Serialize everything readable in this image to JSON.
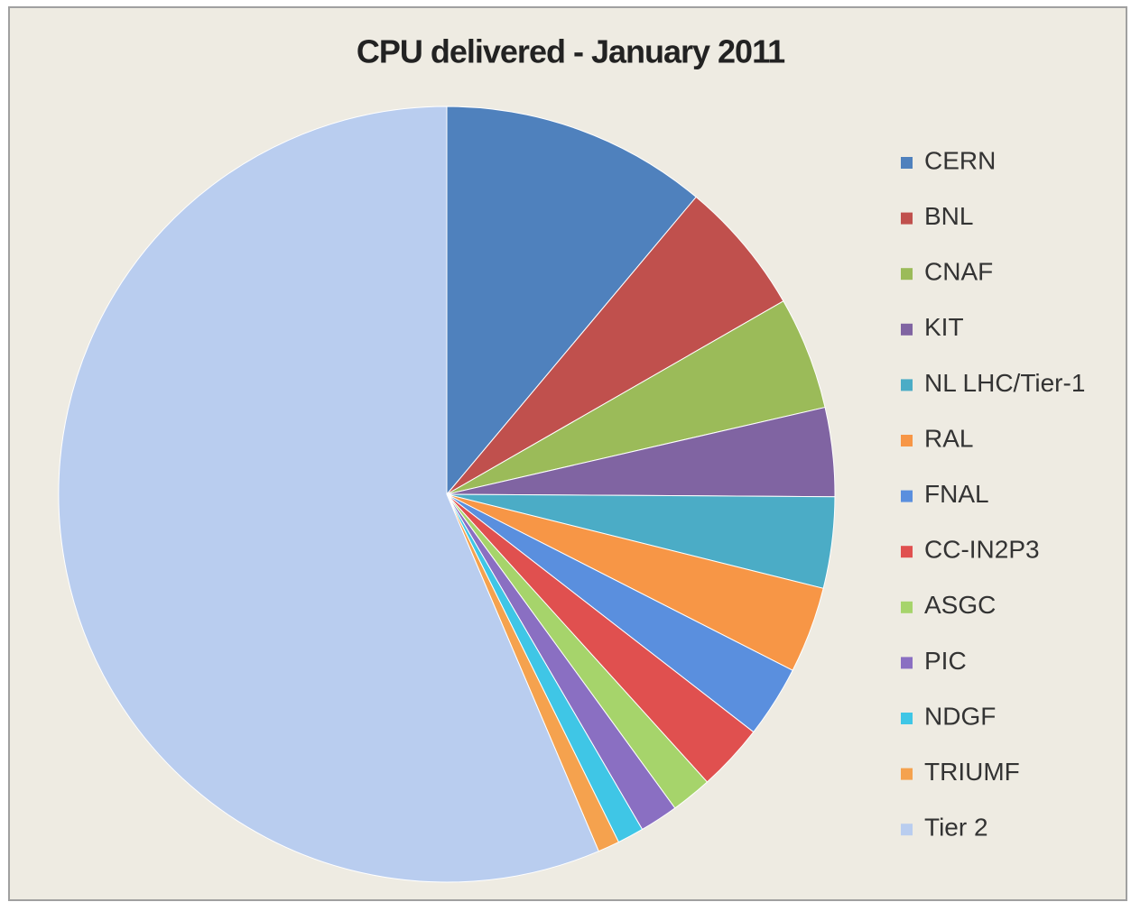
{
  "chart_data": {
    "type": "pie",
    "title": "CPU delivered - January 2011",
    "categories": [
      "CERN",
      "BNL",
      "CNAF",
      "KIT",
      "NL LHC/Tier-1",
      "RAL",
      "FNAL",
      "CC-IN2P3",
      "ASGC",
      "PIC",
      "NDGF",
      "TRIUMF",
      "Tier 2"
    ],
    "values": [
      11.1,
      5.6,
      4.7,
      3.7,
      3.8,
      3.6,
      3.0,
      2.8,
      1.7,
      1.6,
      1.1,
      0.9,
      56.4
    ],
    "colors": [
      "#4f81bd",
      "#c0504d",
      "#9bbb59",
      "#8064a2",
      "#4bacc6",
      "#f79646",
      "#5a8fde",
      "#e0504f",
      "#a6d46b",
      "#8a6fc2",
      "#3fc6e6",
      "#f5a24e",
      "#b9cdef"
    ],
    "legend": "right"
  }
}
